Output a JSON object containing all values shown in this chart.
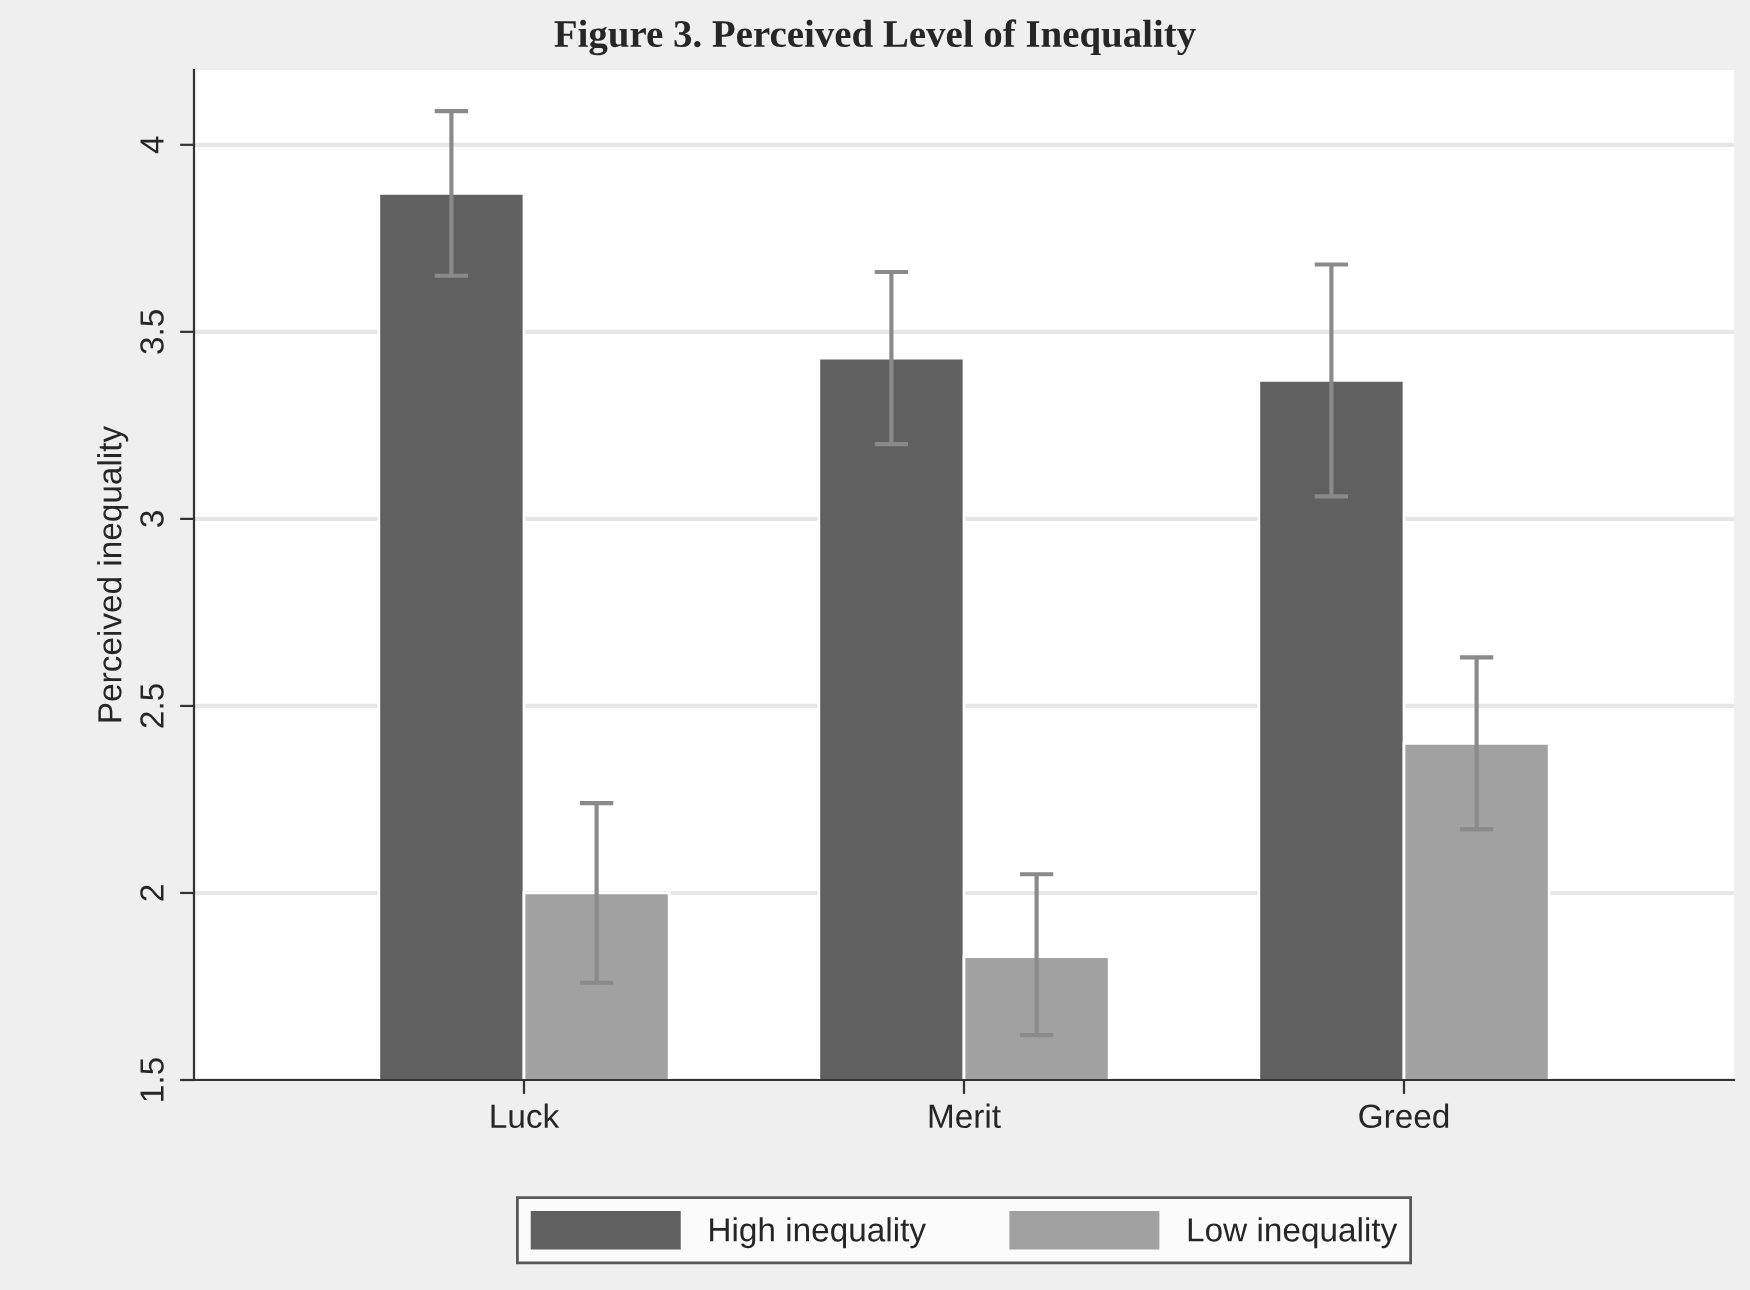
{
  "chart_data": {
    "type": "bar",
    "title": "Figure 3. Perceived Level of Inequality",
    "ylabel": "Perceived inequality",
    "categories": [
      "Luck",
      "Merit",
      "Greed"
    ],
    "series": [
      {
        "name": "High inequality",
        "color": "#606060",
        "values": [
          3.87,
          3.43,
          3.37
        ],
        "errors": [
          [
            3.65,
            4.09
          ],
          [
            3.2,
            3.66
          ],
          [
            3.06,
            3.68
          ]
        ]
      },
      {
        "name": "Low inequality",
        "color": "#a1a1a1",
        "values": [
          2.0,
          1.83,
          2.4
        ],
        "errors": [
          [
            1.76,
            2.24
          ],
          [
            1.62,
            2.05
          ],
          [
            2.17,
            2.63
          ]
        ]
      }
    ],
    "ylim": [
      1.5,
      4.2
    ],
    "yticks": [
      1.5,
      2,
      2.5,
      3,
      3.5,
      4
    ],
    "grid": "y",
    "legend": "bottom"
  }
}
